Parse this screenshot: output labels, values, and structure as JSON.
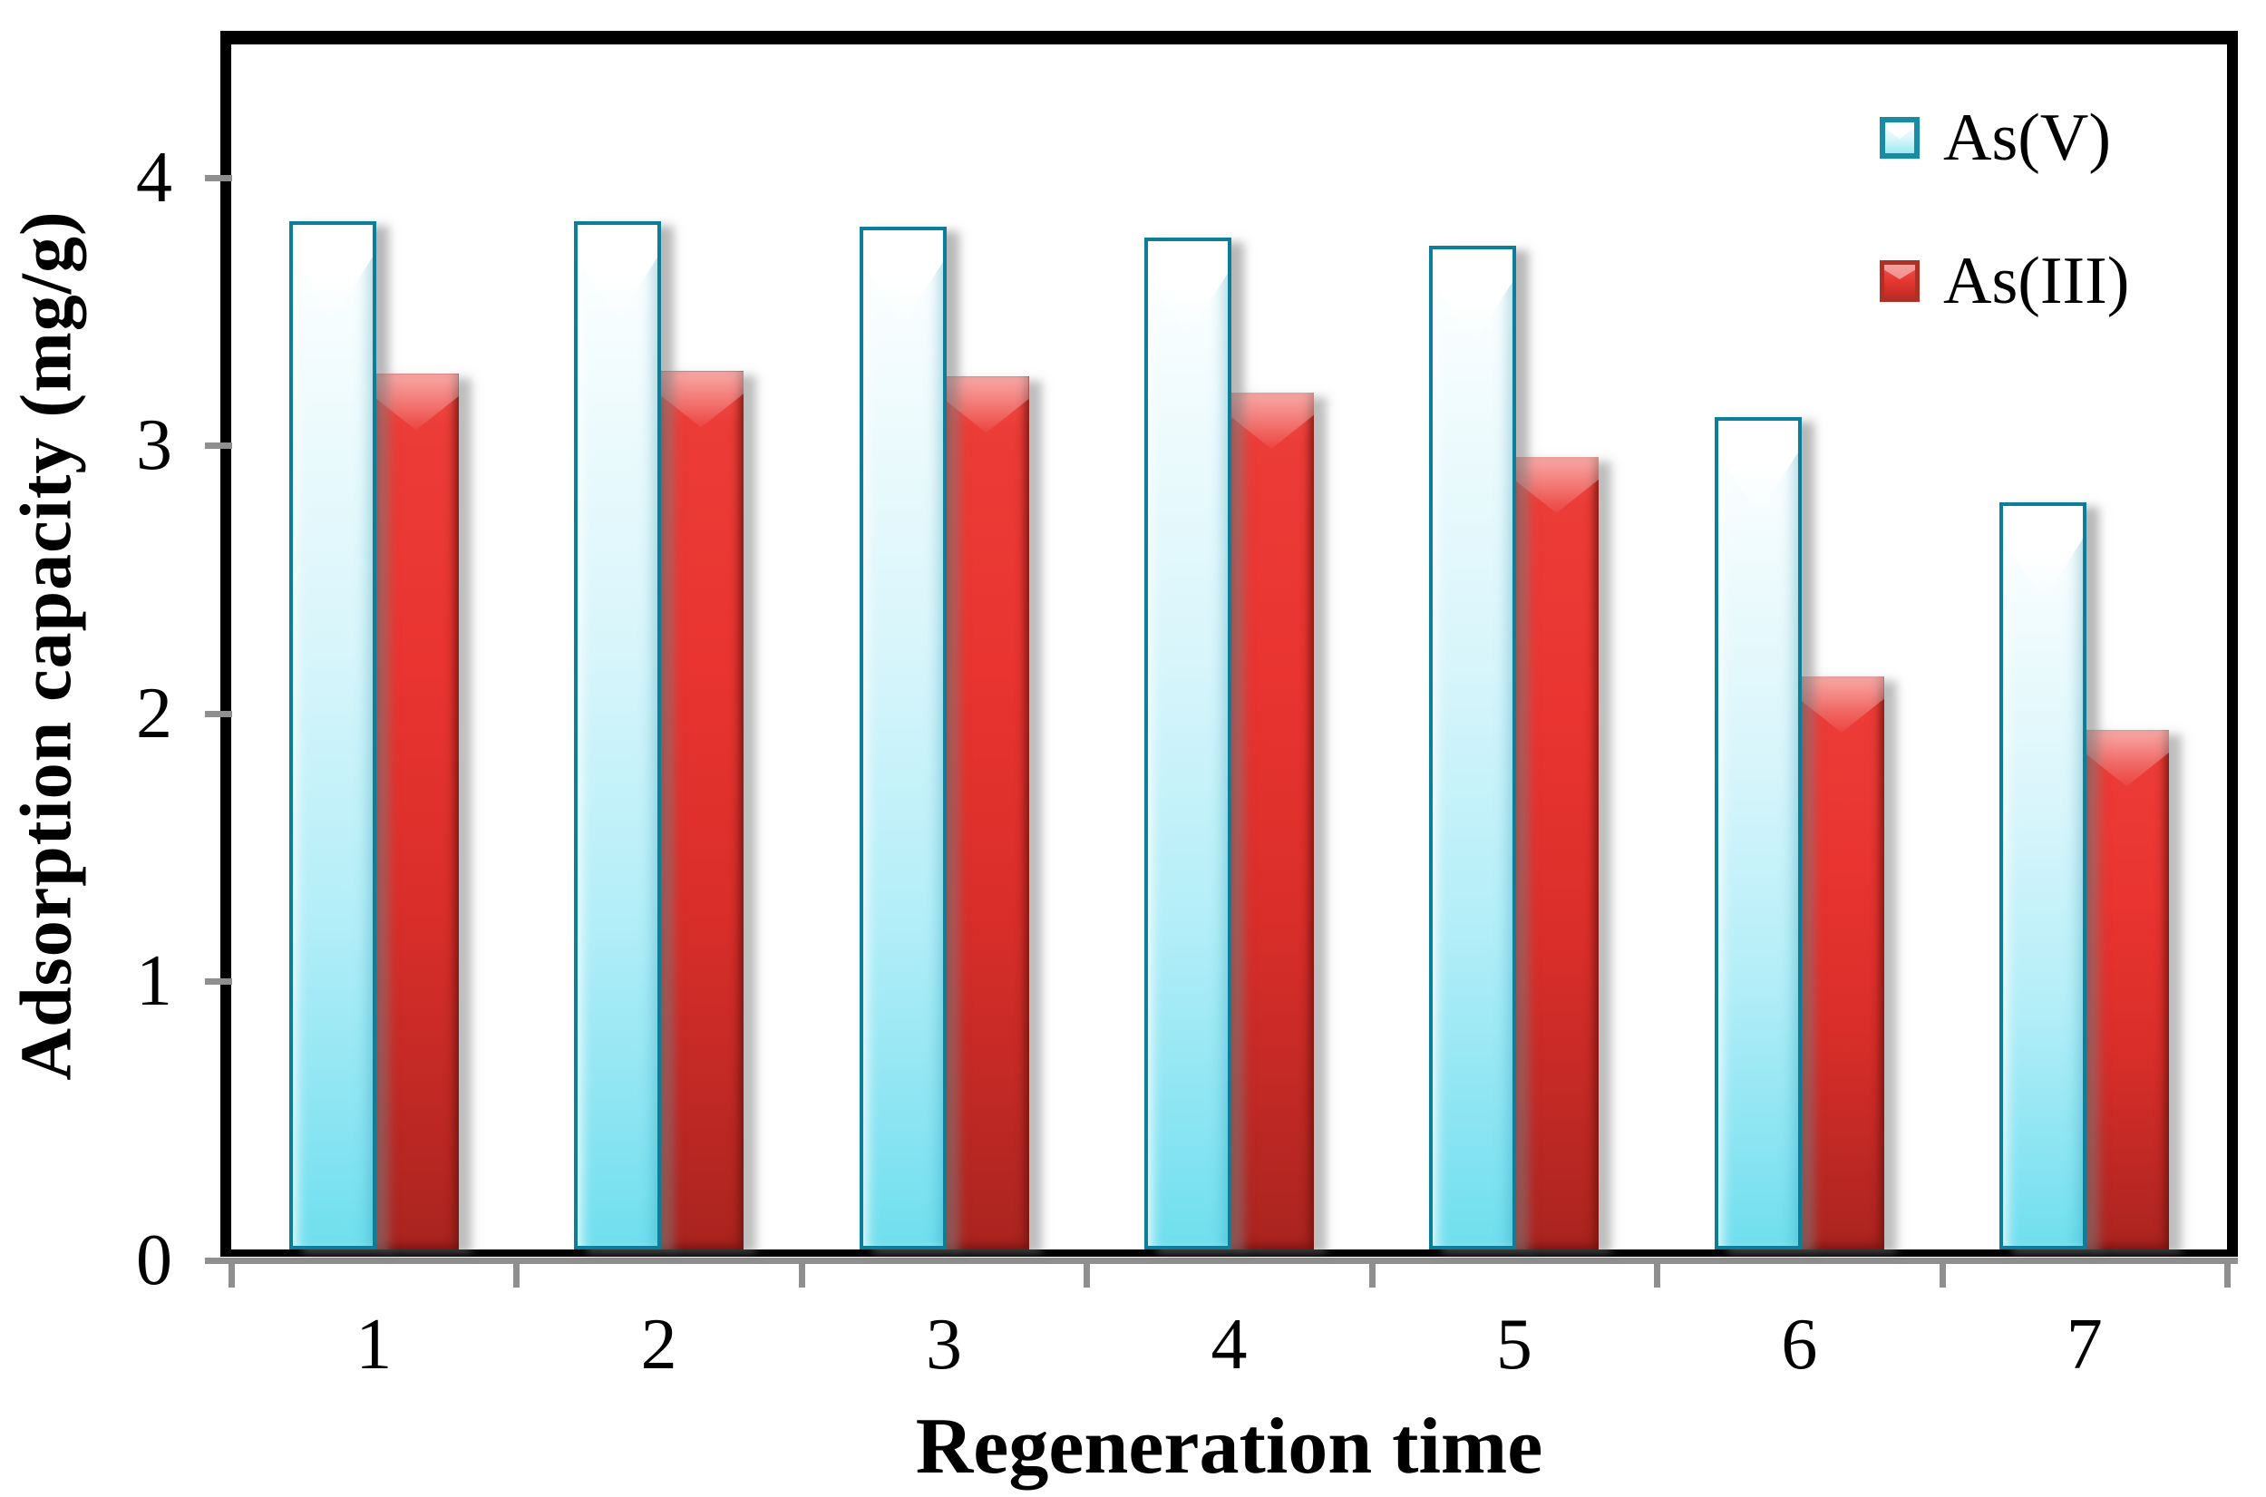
{
  "figure": {
    "y_axis_title": "Adsorption capacity (mg/g)",
    "x_axis_title": "Regeneration time"
  },
  "legend": {
    "position": "top-right",
    "items": [
      {
        "label": "As(V)",
        "swatch_color": "#8ae4f2",
        "swatch_border": "#0d7e99"
      },
      {
        "label": "As(III)",
        "swatch_color": "#e93430",
        "swatch_border": "#b03028"
      }
    ]
  },
  "chart_data": {
    "type": "bar",
    "title": "",
    "xlabel": "Regeneration time",
    "ylabel": "Adsorption capacity (mg/g)",
    "categories": [
      "1",
      "2",
      "3",
      "4",
      "5",
      "6",
      "7"
    ],
    "series": [
      {
        "name": "As(V)",
        "color": "#8ae4f2",
        "values": [
          3.84,
          3.84,
          3.82,
          3.78,
          3.75,
          3.11,
          2.79
        ]
      },
      {
        "name": "As(III)",
        "color": "#e93430",
        "values": [
          3.27,
          3.28,
          3.26,
          3.2,
          2.96,
          2.14,
          1.94
        ]
      }
    ],
    "ylim": [
      0,
      4.5
    ],
    "yticks": [
      0,
      1,
      2,
      3,
      4
    ],
    "grid": false,
    "legend_position": "top-right",
    "bar_style": "3d-glossy",
    "colors": {
      "asv_fill_top": "#ffffff",
      "asv_fill_bottom": "#6fdfee",
      "asv_border": "#0d7e99",
      "asiii_fill_top": "#ec3c37",
      "asiii_fill_bottom": "#aa241f",
      "plot_border": "#000000",
      "axis_gray": "#8f8f8f",
      "text": "#000000"
    }
  }
}
